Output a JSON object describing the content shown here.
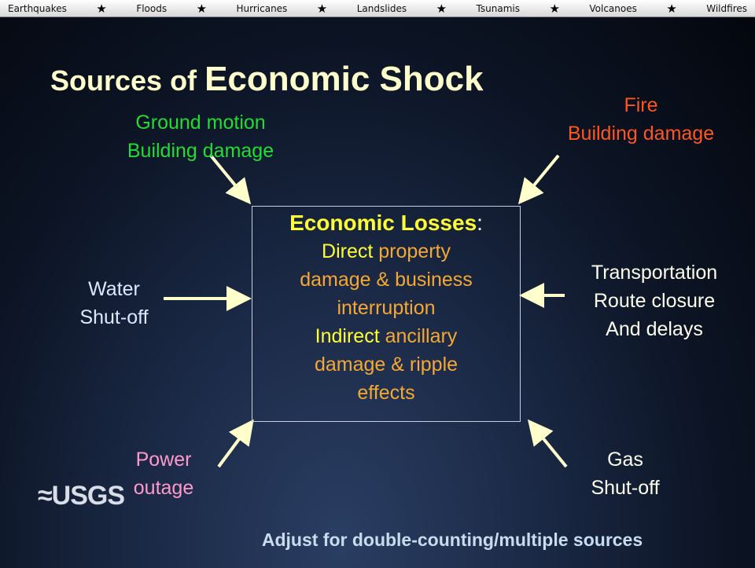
{
  "nav": [
    "Earthquakes",
    "Floods",
    "Hurricanes",
    "Landslides",
    "Tsunamis",
    "Volcanoes",
    "Wildfires"
  ],
  "title": {
    "lead": "Sources of",
    "main": "Economic Shock"
  },
  "sources": {
    "ground": [
      "Ground motion",
      "Building damage"
    ],
    "fire": [
      "Fire",
      "Building damage"
    ],
    "water": [
      "Water",
      "Shut-off"
    ],
    "transportation": [
      "Transportation",
      "Route closure",
      "And delays"
    ],
    "power": [
      "Power",
      "outage"
    ],
    "gas": [
      "Gas",
      "Shut-off"
    ]
  },
  "box": {
    "heading": "Economic Losses",
    "heading_suffix": ":",
    "direct": {
      "key": "Direct",
      "text": "property damage & business interruption"
    },
    "indirect": {
      "key": "Indirect",
      "text": "ancillary damage & ripple effects"
    }
  },
  "logo": "≈USGS",
  "footer": "Adjust for double-counting/multiple sources"
}
